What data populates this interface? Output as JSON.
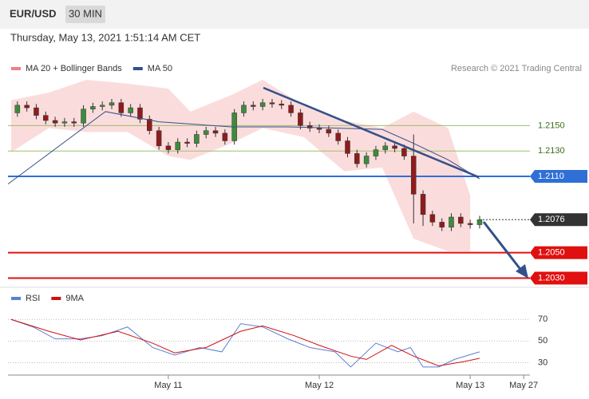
{
  "header": {
    "symbol": "EUR/USD",
    "interval": "30 MIN",
    "timestamp": "Thursday, May 13, 2021 1:51:14 AM CET",
    "credit": "Research © 2021 Trading Central"
  },
  "chart_data": [
    {
      "type": "candlestick",
      "ylim": [
        1.2024,
        1.2208
      ],
      "xlim": [
        -3,
        163
      ],
      "up_color": "#3d8b3d",
      "down_color": "#8e1c1c",
      "x": [
        0,
        3,
        6,
        9,
        12,
        15,
        18,
        21,
        24,
        27,
        30,
        33,
        36,
        39,
        42,
        45,
        48,
        51,
        54,
        57,
        60,
        63,
        66,
        69,
        72,
        75,
        78,
        81,
        84,
        87,
        90,
        93,
        96,
        99,
        102,
        105,
        108,
        111,
        114,
        117,
        120,
        123,
        126,
        129,
        132,
        135,
        138,
        141,
        144,
        147
      ],
      "open": [
        1.216,
        1.2166,
        1.2164,
        1.2158,
        1.2154,
        1.2152,
        1.2153,
        1.2152,
        1.2163,
        1.2165,
        1.2166,
        1.2168,
        1.216,
        1.2164,
        1.2155,
        1.2146,
        1.2134,
        1.2131,
        1.2137,
        1.2136,
        1.2143,
        1.2146,
        1.2144,
        1.2138,
        1.216,
        1.2166,
        1.2165,
        1.2168,
        1.2167,
        1.2166,
        1.216,
        1.215,
        1.2148,
        1.2147,
        1.2144,
        1.2138,
        1.2128,
        1.212,
        1.2126,
        1.2131,
        1.2134,
        1.2132,
        1.2126,
        1.2096,
        1.208,
        1.2074,
        1.207,
        1.2078,
        1.2073,
        1.2072
      ],
      "high": [
        1.2169,
        1.2169,
        1.2167,
        1.2161,
        1.2157,
        1.2156,
        1.2156,
        1.2166,
        1.2168,
        1.2169,
        1.2171,
        1.2171,
        1.2167,
        1.2167,
        1.2158,
        1.2149,
        1.2137,
        1.214,
        1.214,
        1.2146,
        1.2149,
        1.2149,
        1.2147,
        1.2163,
        1.2169,
        1.2169,
        1.2171,
        1.2171,
        1.217,
        1.2169,
        1.2163,
        1.2153,
        1.2151,
        1.215,
        1.2147,
        1.2141,
        1.2131,
        1.2129,
        1.2134,
        1.2137,
        1.2137,
        1.2135,
        1.2143,
        1.2099,
        1.2083,
        1.2077,
        1.2081,
        1.2081,
        1.2076,
        1.2079
      ],
      "low": [
        1.2157,
        1.2161,
        1.2155,
        1.2151,
        1.2149,
        1.2149,
        1.2149,
        1.2149,
        1.216,
        1.2162,
        1.2163,
        1.2157,
        1.2157,
        1.2152,
        1.2143,
        1.2131,
        1.2128,
        1.2128,
        1.2133,
        1.2133,
        1.214,
        1.2141,
        1.2135,
        1.2135,
        1.2157,
        1.2162,
        1.2162,
        1.2164,
        1.2163,
        1.2157,
        1.2147,
        1.2145,
        1.2144,
        1.2141,
        1.2135,
        1.2125,
        1.2117,
        1.2117,
        1.2123,
        1.2128,
        1.2129,
        1.2123,
        1.2073,
        1.2071,
        1.2071,
        1.2067,
        1.2067,
        1.207,
        1.2069,
        1.2069
      ],
      "close": [
        1.2166,
        1.2164,
        1.2158,
        1.2154,
        1.2152,
        1.2153,
        1.2152,
        1.2163,
        1.2165,
        1.2166,
        1.2168,
        1.216,
        1.2164,
        1.2155,
        1.2146,
        1.2134,
        1.2131,
        1.2137,
        1.2136,
        1.2143,
        1.2146,
        1.2144,
        1.2138,
        1.216,
        1.2166,
        1.2165,
        1.2168,
        1.2167,
        1.2166,
        1.216,
        1.215,
        1.2148,
        1.2147,
        1.2144,
        1.2138,
        1.2128,
        1.212,
        1.2126,
        1.2131,
        1.2134,
        1.2132,
        1.2126,
        1.2096,
        1.208,
        1.2074,
        1.207,
        1.2078,
        1.2073,
        1.2072,
        1.2076
      ],
      "band": {
        "name": "MA 20 + Bollinger Bands",
        "color": "#f08080",
        "x": [
          -2,
          10,
          22,
          35,
          48,
          55,
          68,
          78,
          91,
          104,
          116,
          126,
          137,
          144
        ],
        "upper": [
          1.217,
          1.2176,
          1.2186,
          1.2183,
          1.2179,
          1.2161,
          1.2174,
          1.2186,
          1.2166,
          1.2154,
          1.2148,
          1.2161,
          1.2148,
          1.2095
        ],
        "lower": [
          1.2129,
          1.2148,
          1.2145,
          1.2145,
          1.2126,
          1.2123,
          1.2136,
          1.2148,
          1.2141,
          1.2114,
          1.2117,
          1.2061,
          1.2051,
          1.2051
        ]
      },
      "series": [
        {
          "name": "MA 50",
          "color": "#34508a",
          "x": [
            -3,
            28,
            45,
            68,
            86,
            101,
            116,
            126,
            137,
            147
          ],
          "values": [
            1.2104,
            1.2161,
            1.2153,
            1.2149,
            1.2149,
            1.2148,
            1.2147,
            1.2136,
            1.2123,
            1.2108
          ]
        }
      ],
      "levels": [
        {
          "value": 1.215,
          "label": "1.2150",
          "color": "#9bbf6a",
          "boxed": false,
          "style": "solid"
        },
        {
          "value": 1.213,
          "label": "1.2130",
          "color": "#9bbf6a",
          "boxed": false,
          "style": "solid"
        },
        {
          "value": 1.211,
          "label": "1.2110",
          "color": "#2f6fd6",
          "boxed": true,
          "style": "solid"
        },
        {
          "value": 1.2076,
          "label": "1.2076",
          "color": "#333333",
          "boxed": true,
          "style": "dotted"
        },
        {
          "value": 1.205,
          "label": "1.2050",
          "color": "#e01010",
          "boxed": true,
          "style": "solid"
        },
        {
          "value": 1.203,
          "label": "1.2030",
          "color": "#e01010",
          "boxed": true,
          "style": "solid"
        }
      ]
    },
    {
      "type": "line",
      "ylim": [
        20,
        96
      ],
      "xlim": [
        -3,
        163
      ],
      "yticks": [
        30,
        50,
        70
      ],
      "xticks": [
        {
          "value": 48,
          "label": "May 11"
        },
        {
          "value": 96,
          "label": "May 12"
        },
        {
          "value": 144,
          "label": "May 13"
        },
        {
          "value": 161,
          "label": "May 27"
        }
      ],
      "series": [
        {
          "name": "RSI",
          "color": "#5b7fd4",
          "x": [
            -2,
            5,
            12,
            20,
            27,
            35,
            43,
            50,
            58,
            65,
            71,
            78,
            86,
            93,
            101,
            106,
            114,
            121,
            125,
            129,
            134,
            139,
            147
          ],
          "values": [
            70,
            63,
            52,
            52,
            55,
            63,
            44,
            37,
            44,
            40,
            66,
            63,
            52,
            44,
            40,
            26,
            48,
            40,
            44,
            26,
            26,
            33,
            40
          ]
        },
        {
          "name": "9MA",
          "color": "#d01010",
          "x": [
            -2,
            10,
            20,
            32,
            43,
            50,
            60,
            71,
            78,
            88,
            96,
            106,
            111,
            119,
            126,
            134,
            142,
            147
          ],
          "values": [
            70,
            59,
            51,
            59,
            48,
            39,
            44,
            59,
            64,
            55,
            46,
            36,
            33,
            46,
            36,
            27,
            31,
            34
          ]
        }
      ]
    }
  ]
}
